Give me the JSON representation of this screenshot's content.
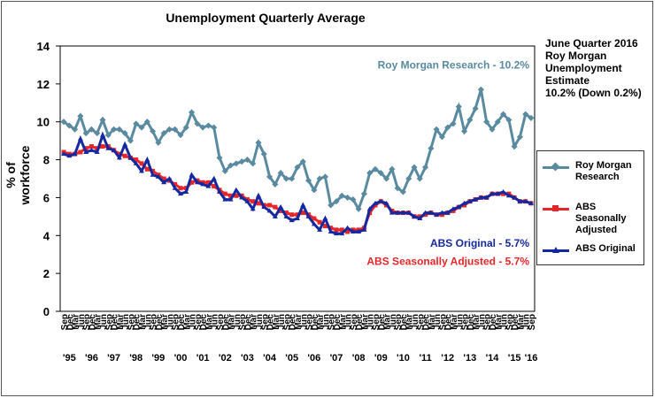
{
  "title": "Unemployment Quarterly Average",
  "ylabel": "% of workforce",
  "estimate_box": {
    "lines": [
      "June Quarter 2016",
      "Roy Morgan",
      "Unemployment",
      "Estimate",
      "10.2% (Down 0.2%)"
    ]
  },
  "legend": [
    {
      "label": "Roy Morgan Research",
      "color": "#5a8aa0"
    },
    {
      "label": "ABS Seasonally Adjusted",
      "color": "#e8262a"
    },
    {
      "label": "ABS Original",
      "color": "#1428a0"
    }
  ],
  "chart_data": {
    "type": "line",
    "title": "Unemployment Quarterly Average",
    "ylabel": "% of workforce",
    "ylim": [
      0,
      14
    ],
    "yticks": [
      0,
      2,
      4,
      6,
      8,
      10,
      12,
      14
    ],
    "grid": false,
    "legend_position": "right",
    "year_labels": [
      "'95",
      "'96",
      "'97",
      "'98",
      "'99",
      "'00",
      "'01",
      "'02",
      "'03",
      "'04",
      "'05",
      "'06",
      "'07",
      "'08",
      "'09",
      "'10",
      "'11",
      "'12",
      "'13",
      "'14",
      "'15",
      "'16"
    ],
    "quarter_labels": [
      "Sep",
      "Dec",
      "Mar",
      "Jun"
    ],
    "annotations": [
      {
        "text": "Roy Morgan Research - 10.2%",
        "color": "#5a8aa0"
      },
      {
        "text": "ABS Original - 5.7%",
        "color": "#1428a0"
      },
      {
        "text": "ABS Seasonally Adjusted - 5.7%",
        "color": "#e8262a"
      }
    ],
    "series": [
      {
        "name": "Roy Morgan Research",
        "color": "#5a8aa0",
        "values": [
          10.0,
          9.8,
          9.6,
          10.3,
          9.4,
          9.6,
          9.4,
          10.1,
          9.3,
          9.6,
          9.6,
          9.4,
          9.0,
          9.9,
          9.7,
          10.0,
          9.5,
          8.9,
          9.4,
          9.6,
          9.6,
          9.3,
          9.7,
          10.5,
          9.9,
          9.7,
          9.8,
          9.7,
          8.1,
          7.4,
          7.7,
          7.8,
          7.9,
          8.0,
          7.8,
          8.9,
          8.3,
          7.1,
          6.7,
          7.3,
          7.0,
          7.0,
          7.6,
          7.9,
          6.9,
          6.4,
          7.0,
          7.1,
          5.6,
          5.8,
          6.1,
          6.0,
          5.9,
          5.4,
          6.2,
          7.3,
          7.5,
          7.3,
          7.0,
          7.5,
          6.5,
          6.3,
          7.0,
          7.6,
          7.0,
          7.6,
          8.6,
          9.6,
          9.2,
          9.7,
          9.9,
          10.8,
          9.5,
          10.1,
          10.7,
          11.7,
          10.0,
          9.6,
          10.0,
          10.4,
          10.1,
          8.7,
          9.2,
          10.4,
          10.2
        ]
      },
      {
        "name": "ABS Seasonally Adjusted",
        "color": "#e8262a",
        "values": [
          8.4,
          8.3,
          8.3,
          8.4,
          8.6,
          8.7,
          8.6,
          8.7,
          8.7,
          8.5,
          8.3,
          8.2,
          8.1,
          8.0,
          7.8,
          7.5,
          7.4,
          7.2,
          7.0,
          6.9,
          6.7,
          6.5,
          6.5,
          6.8,
          6.9,
          6.8,
          6.8,
          6.6,
          6.4,
          6.2,
          6.1,
          6.1,
          6.1,
          5.9,
          5.8,
          5.7,
          5.6,
          5.6,
          5.5,
          5.3,
          5.2,
          5.1,
          5.1,
          5.2,
          5.1,
          4.9,
          4.7,
          4.5,
          4.4,
          4.3,
          4.3,
          4.2,
          4.3,
          4.3,
          4.4,
          5.2,
          5.6,
          5.8,
          5.6,
          5.3,
          5.2,
          5.2,
          5.2,
          5.0,
          5.0,
          5.1,
          5.2,
          5.1,
          5.1,
          5.2,
          5.3,
          5.5,
          5.6,
          5.8,
          5.9,
          6.0,
          6.0,
          6.2,
          6.2,
          6.2,
          6.2,
          6.0,
          5.8,
          5.8,
          5.7
        ]
      },
      {
        "name": "ABS Original",
        "color": "#1428a0",
        "values": [
          8.3,
          8.2,
          8.3,
          9.1,
          8.4,
          8.5,
          8.4,
          9.3,
          8.6,
          8.5,
          8.1,
          8.8,
          8.1,
          7.8,
          7.4,
          8.0,
          7.2,
          7.1,
          6.8,
          7.0,
          6.5,
          6.2,
          6.3,
          7.2,
          6.8,
          6.7,
          6.6,
          7.0,
          6.3,
          5.9,
          5.9,
          6.4,
          6.0,
          5.8,
          5.4,
          6.1,
          5.5,
          5.3,
          5.0,
          5.5,
          5.0,
          4.8,
          4.9,
          5.6,
          5.0,
          4.6,
          4.3,
          4.9,
          4.2,
          4.1,
          4.1,
          4.4,
          4.2,
          4.2,
          4.3,
          5.4,
          5.7,
          5.8,
          5.7,
          5.2,
          5.2,
          5.2,
          5.2,
          5.0,
          4.9,
          5.2,
          5.2,
          5.1,
          5.2,
          5.2,
          5.4,
          5.5,
          5.7,
          5.8,
          5.9,
          6.0,
          6.0,
          6.2,
          6.2,
          6.3,
          6.1,
          6.0,
          5.8,
          5.8,
          5.7
        ]
      }
    ]
  }
}
